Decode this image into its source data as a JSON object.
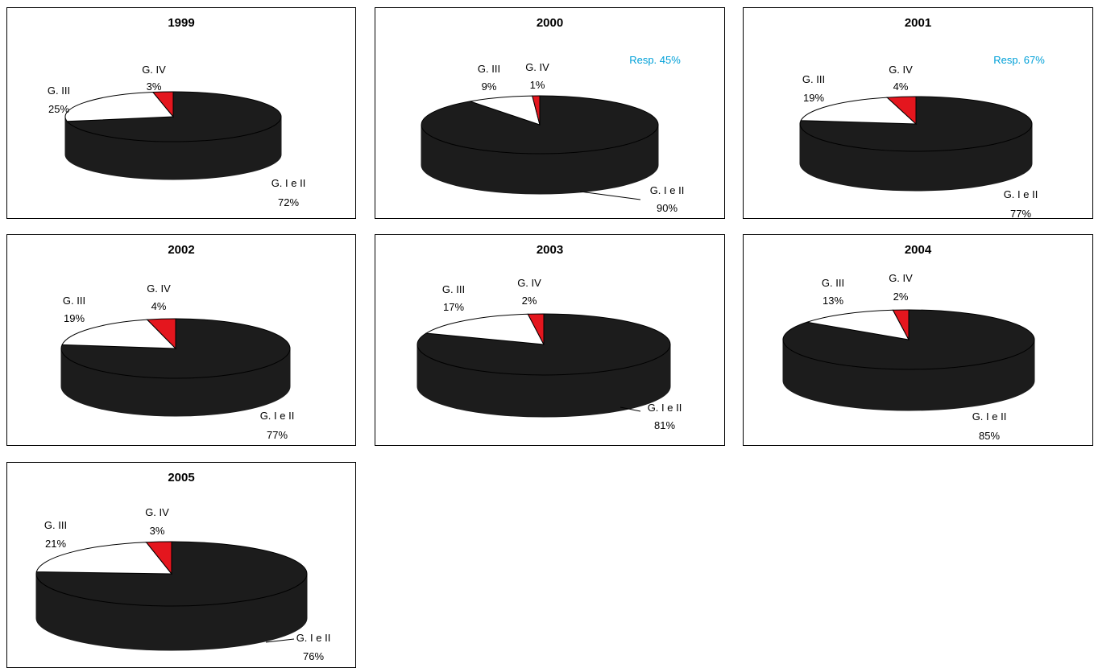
{
  "colors": {
    "g12": "#1c1c1c",
    "g3": "#ffffff",
    "g4": "#e4161e",
    "resp": "#00a0d8",
    "outline": "#000000"
  },
  "chart_data": [
    {
      "type": "pie",
      "title": "1999",
      "note": "",
      "categories": [
        "G. I e II",
        "G. III",
        "G. IV"
      ],
      "values": [
        72,
        25,
        3
      ],
      "labels": [
        {
          "name": "G. I e II",
          "value": "72%"
        },
        {
          "name": "G. III",
          "value": "25%"
        },
        {
          "name": "G. IV",
          "value": "3%"
        }
      ]
    },
    {
      "type": "pie",
      "title": "2000",
      "note": "Resp. 45%",
      "categories": [
        "G. I e II",
        "G. III",
        "G. IV"
      ],
      "values": [
        90,
        9,
        1
      ],
      "labels": [
        {
          "name": "G. I e II",
          "value": "90%"
        },
        {
          "name": "G. III",
          "value": "9%"
        },
        {
          "name": "G. IV",
          "value": "1%"
        }
      ]
    },
    {
      "type": "pie",
      "title": "2001",
      "note": "Resp. 67%",
      "categories": [
        "G. I e II",
        "G. III",
        "G. IV"
      ],
      "values": [
        77,
        19,
        4
      ],
      "labels": [
        {
          "name": "G. I e II",
          "value": "77%"
        },
        {
          "name": "G. III",
          "value": "19%"
        },
        {
          "name": "G. IV",
          "value": "4%"
        }
      ]
    },
    {
      "type": "pie",
      "title": "2002",
      "note": "",
      "categories": [
        "G. I e II",
        "G. III",
        "G. IV"
      ],
      "values": [
        77,
        19,
        4
      ],
      "labels": [
        {
          "name": "G. I e II",
          "value": "77%"
        },
        {
          "name": "G. III",
          "value": "19%"
        },
        {
          "name": "G. IV",
          "value": "4%"
        }
      ]
    },
    {
      "type": "pie",
      "title": "2003",
      "note": "",
      "categories": [
        "G. I e II",
        "G. III",
        "G. IV"
      ],
      "values": [
        81,
        17,
        2
      ],
      "labels": [
        {
          "name": "G. I e II",
          "value": "81%"
        },
        {
          "name": "G. III",
          "value": "17%"
        },
        {
          "name": "G. IV",
          "value": "2%"
        }
      ]
    },
    {
      "type": "pie",
      "title": "2004",
      "note": "",
      "categories": [
        "G. I e II",
        "G. III",
        "G. IV"
      ],
      "values": [
        85,
        13,
        2
      ],
      "labels": [
        {
          "name": "G. I e II",
          "value": "85%"
        },
        {
          "name": "G. III",
          "value": "13%"
        },
        {
          "name": "G. IV",
          "value": "2%"
        }
      ]
    },
    {
      "type": "pie",
      "title": "2005",
      "note": "",
      "categories": [
        "G. I e II",
        "G. III",
        "G. IV"
      ],
      "values": [
        76,
        21,
        3
      ],
      "labels": [
        {
          "name": "G. I e II",
          "value": "76%"
        },
        {
          "name": "G. III",
          "value": "21%"
        },
        {
          "name": "G. IV",
          "value": "3%"
        }
      ]
    }
  ]
}
